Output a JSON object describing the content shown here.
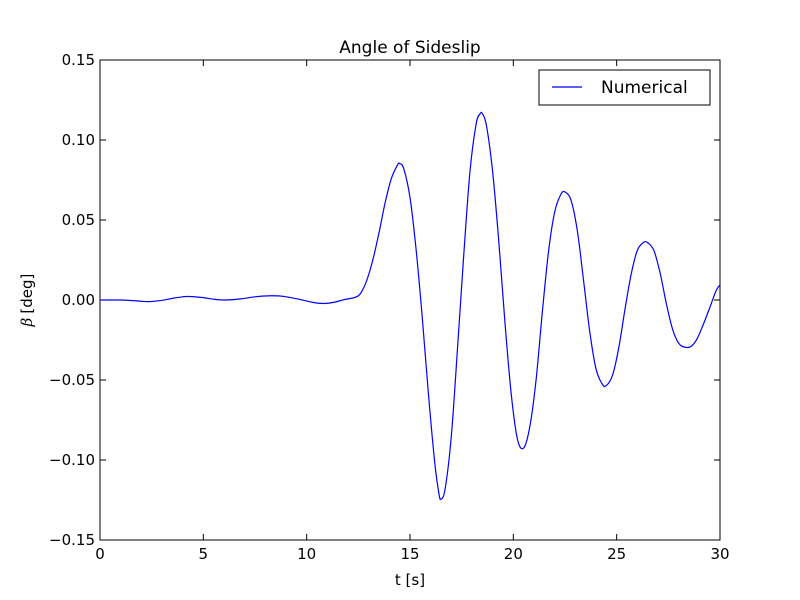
{
  "chart_data": {
    "type": "line",
    "title": "Angle of Sideslip",
    "xlabel": "t [s]",
    "ylabel_symbol": "β",
    "ylabel_unit": "[deg]",
    "xlim": [
      0,
      30
    ],
    "ylim": [
      -0.15,
      0.15
    ],
    "xticks": [
      0,
      5,
      10,
      15,
      20,
      25,
      30
    ],
    "xtick_labels": [
      "0",
      "5",
      "10",
      "15",
      "20",
      "25",
      "30"
    ],
    "yticks": [
      0.15,
      0.1,
      0.05,
      0.0,
      -0.05,
      -0.1,
      -0.15
    ],
    "ytick_labels": [
      "0.15",
      "0.10",
      "0.05",
      "0.00",
      "−0.05",
      "−0.10",
      "−0.15"
    ],
    "grid": false,
    "legend_position": "top-right",
    "series": [
      {
        "name": "Numerical",
        "color": "#0000ff",
        "points": [
          [
            0,
            0.0
          ],
          [
            0.5,
            0.0
          ],
          [
            1.0,
            0.0
          ],
          [
            1.5,
            -0.0003
          ],
          [
            2.0,
            -0.0008
          ],
          [
            2.4,
            -0.001
          ],
          [
            3.0,
            -0.0002
          ],
          [
            3.5,
            0.001
          ],
          [
            4.0,
            0.002
          ],
          [
            4.3,
            0.0022
          ],
          [
            5.0,
            0.0015
          ],
          [
            5.5,
            0.0005
          ],
          [
            6.1,
            0.0
          ],
          [
            6.8,
            0.0007
          ],
          [
            7.5,
            0.002
          ],
          [
            8.1,
            0.0026
          ],
          [
            8.8,
            0.0024
          ],
          [
            9.5,
            0.0008
          ],
          [
            10.3,
            -0.0015
          ],
          [
            10.8,
            -0.0022
          ],
          [
            11.3,
            -0.0015
          ],
          [
            11.8,
            0.0002
          ],
          [
            12.3,
            0.0015
          ],
          [
            12.6,
            0.004
          ],
          [
            12.9,
            0.012
          ],
          [
            13.2,
            0.025
          ],
          [
            13.5,
            0.042
          ],
          [
            13.8,
            0.061
          ],
          [
            14.1,
            0.076
          ],
          [
            14.4,
            0.0845
          ],
          [
            14.5,
            0.0853
          ],
          [
            14.7,
            0.082
          ],
          [
            15.0,
            0.064
          ],
          [
            15.3,
            0.031
          ],
          [
            15.6,
            -0.012
          ],
          [
            15.9,
            -0.06
          ],
          [
            16.2,
            -0.102
          ],
          [
            16.4,
            -0.121
          ],
          [
            16.5,
            -0.1245
          ],
          [
            16.7,
            -0.118
          ],
          [
            17.0,
            -0.085
          ],
          [
            17.3,
            -0.03
          ],
          [
            17.6,
            0.028
          ],
          [
            17.9,
            0.08
          ],
          [
            18.2,
            0.11
          ],
          [
            18.4,
            0.1165
          ],
          [
            18.5,
            0.1165
          ],
          [
            18.7,
            0.109
          ],
          [
            19.0,
            0.08
          ],
          [
            19.3,
            0.036
          ],
          [
            19.6,
            -0.015
          ],
          [
            19.9,
            -0.059
          ],
          [
            20.2,
            -0.087
          ],
          [
            20.5,
            -0.0925
          ],
          [
            20.8,
            -0.079
          ],
          [
            21.1,
            -0.05
          ],
          [
            21.4,
            -0.008
          ],
          [
            21.7,
            0.03
          ],
          [
            22.0,
            0.055
          ],
          [
            22.3,
            0.066
          ],
          [
            22.5,
            0.0675
          ],
          [
            22.8,
            0.062
          ],
          [
            23.1,
            0.043
          ],
          [
            23.4,
            0.012
          ],
          [
            23.7,
            -0.02
          ],
          [
            24.0,
            -0.043
          ],
          [
            24.3,
            -0.0525
          ],
          [
            24.5,
            -0.0535
          ],
          [
            24.8,
            -0.047
          ],
          [
            25.1,
            -0.03
          ],
          [
            25.4,
            -0.006
          ],
          [
            25.7,
            0.016
          ],
          [
            26.0,
            0.031
          ],
          [
            26.3,
            0.036
          ],
          [
            26.5,
            0.0358
          ],
          [
            26.8,
            0.031
          ],
          [
            27.1,
            0.017
          ],
          [
            27.4,
            -0.002
          ],
          [
            27.7,
            -0.018
          ],
          [
            28.0,
            -0.027
          ],
          [
            28.3,
            -0.0295
          ],
          [
            28.6,
            -0.029
          ],
          [
            28.9,
            -0.024
          ],
          [
            29.2,
            -0.015
          ],
          [
            29.5,
            -0.005
          ],
          [
            29.8,
            0.0055
          ],
          [
            30.0,
            0.0095
          ]
        ]
      }
    ]
  }
}
